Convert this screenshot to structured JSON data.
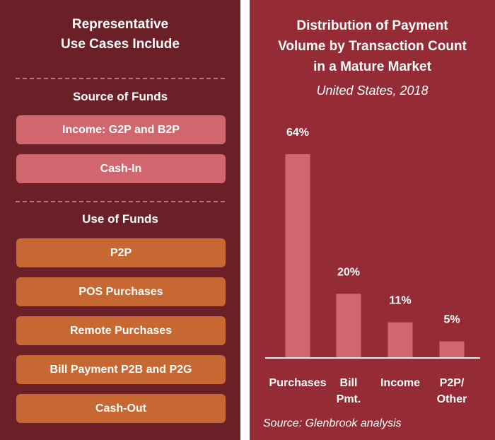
{
  "left_panel": {
    "heading_line1": "Representative",
    "heading_line2": "Use Cases Include",
    "source_of_funds": {
      "label": "Source of Funds",
      "items": [
        "Income: G2P and B2P",
        "Cash-In"
      ]
    },
    "use_of_funds": {
      "label": "Use of Funds",
      "items": [
        "P2P",
        "POS Purchases",
        "Remote Purchases",
        "Bill Payment P2B and P2G",
        "Cash-Out"
      ]
    }
  },
  "chart_data": {
    "type": "bar",
    "title_lines": [
      "Distribution of Payment",
      "Volume by Transaction Count",
      "in a Mature Market"
    ],
    "subtitle": "United States, 2018",
    "categories": [
      [
        "Purchases"
      ],
      [
        "Bill",
        "Pmt."
      ],
      [
        "Income"
      ],
      [
        "P2P/",
        "Other"
      ]
    ],
    "values": [
      64,
      20,
      11,
      5
    ],
    "value_labels": [
      "64%",
      "20%",
      "11%",
      "5%"
    ],
    "unit": "%",
    "ylim": [
      0,
      64
    ],
    "grid": false,
    "legend": "none",
    "source": "Source: Glenbrook analysis"
  },
  "colors": {
    "left_panel_bg": "#6a2026",
    "right_panel_bg": "#952c35",
    "source_pill": "#d0676f",
    "use_pill": "#c76732",
    "bar": "#d0676f",
    "dash": "#c96f7a",
    "text": "#ffffff"
  }
}
